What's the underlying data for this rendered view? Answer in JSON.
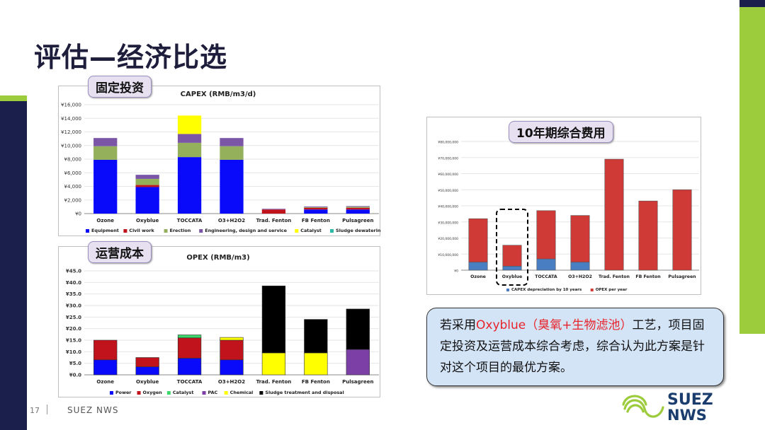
{
  "slide": {
    "title": "评估—经济比选",
    "page_number": "17",
    "footer_company": "SUEZ NWS",
    "logo_text_1": "SUEZ",
    "logo_text_2": "NWS"
  },
  "capex_panel": {
    "tag": "固定投资"
  },
  "opex_panel": {
    "tag": "运营成本"
  },
  "total_panel": {
    "tag": "10年期综合费用"
  },
  "conclusion": {
    "part1": "若采用",
    "highlight": "Oxyblue（臭氧+生物滤池）",
    "part2": "工艺，项目固定投资及运营成本综合考虑，综合认为此方案是针对这个项目的最优方案。"
  },
  "colors": {
    "equipment": "#0a0afa",
    "civil_work": "#c0131b",
    "erection": "#94b05a",
    "engineering": "#7b55a6",
    "catalyst_capex": "#ffff00",
    "sludge_dewatering": "#2eb8a8",
    "power": "#0a0afa",
    "oxygen": "#c0131b",
    "catalyst_opex": "#3dd66a",
    "pac": "#7b3fa6",
    "chemical": "#ffff00",
    "sludge_treatment": "#000000",
    "capex_dep": "#4a7ec2",
    "opex_year": "#d03a36"
  },
  "chart_data": [
    {
      "type": "bar",
      "stacked": true,
      "title": "CAPEX (RMB/m3/d)",
      "categories": [
        "Ozone",
        "Oxyblue",
        "TOCCATA",
        "O3+H2O2",
        "Trad. Fenton",
        "FB Fenton",
        "Pulsagreen"
      ],
      "ylim": [
        0,
        16000
      ],
      "yticks": [
        "¥0",
        "¥2,000",
        "¥4,000",
        "¥6,000",
        "¥8,000",
        "¥10,000",
        "¥12,000",
        "¥14,000",
        "¥16,000"
      ],
      "legend_position": "bottom",
      "series": [
        {
          "name": "Equipment",
          "color_key": "equipment",
          "values": [
            7900,
            3900,
            8300,
            7900,
            0,
            600,
            600
          ]
        },
        {
          "name": "Civil work",
          "color_key": "civil_work",
          "values": [
            0,
            300,
            0,
            0,
            600,
            250,
            250
          ]
        },
        {
          "name": "Erection",
          "color_key": "erection",
          "values": [
            2000,
            900,
            2100,
            2000,
            0,
            100,
            150
          ]
        },
        {
          "name": "Engineering, design and service",
          "color_key": "engineering",
          "values": [
            1200,
            600,
            1300,
            1200,
            100,
            100,
            100
          ]
        },
        {
          "name": "Catalyst",
          "color_key": "catalyst_capex",
          "values": [
            0,
            0,
            2700,
            0,
            0,
            0,
            0
          ]
        },
        {
          "name": "Sludge dewatering",
          "color_key": "sludge_dewatering",
          "values": [
            0,
            0,
            0,
            0,
            0,
            0,
            0
          ]
        }
      ]
    },
    {
      "type": "bar",
      "stacked": true,
      "title": "OPEX (RMB/m3)",
      "categories": [
        "Ozone",
        "Oxyblue",
        "TOCCATA",
        "O3+H2O2",
        "Trad. Fenton",
        "FB Fenton",
        "Pulsagreen"
      ],
      "ylim": [
        0,
        45
      ],
      "yticks": [
        "¥0.0",
        "¥5.0",
        "¥10.0",
        "¥15.0",
        "¥20.0",
        "¥25.0",
        "¥30.0",
        "¥35.0",
        "¥40.0",
        "¥45.0"
      ],
      "legend_position": "bottom",
      "series": [
        {
          "name": "Power",
          "color_key": "power",
          "values": [
            6.5,
            3.5,
            7.2,
            6.5,
            0,
            0,
            0
          ]
        },
        {
          "name": "Oxygen",
          "color_key": "oxygen",
          "values": [
            8.5,
            4.0,
            8.8,
            8.5,
            0,
            0,
            0
          ]
        },
        {
          "name": "Catalyst",
          "color_key": "catalyst_opex",
          "values": [
            0,
            0,
            1.3,
            0,
            0,
            0,
            0
          ]
        },
        {
          "name": "PAC",
          "color_key": "pac",
          "values": [
            0,
            0,
            0,
            0,
            0,
            0,
            11.0
          ]
        },
        {
          "name": "Chemical",
          "color_key": "chemical",
          "values": [
            0,
            0,
            0,
            1.2,
            9.5,
            9.5,
            0
          ]
        },
        {
          "name": "Sludge treatment and disposal",
          "color_key": "sludge_treatment",
          "values": [
            0,
            0,
            0,
            0,
            29.0,
            14.5,
            17.5
          ]
        }
      ]
    },
    {
      "type": "bar",
      "stacked": true,
      "title": "",
      "categories": [
        "Ozone",
        "Oxyblue",
        "TOCCATA",
        "O3+H2O2",
        "Trad. Fenton",
        "FB Fenton",
        "Pulsagreen"
      ],
      "ylim": [
        0,
        80000000
      ],
      "yticks": [
        "¥0",
        "¥10,000,000",
        "¥20,000,000",
        "¥30,000,000",
        "¥40,000,000",
        "¥50,000,000",
        "¥60,000,000",
        "¥70,000,000",
        "¥80,000,000"
      ],
      "legend_position": "bottom",
      "highlight_category": "Oxyblue",
      "series": [
        {
          "name": "CAPEX depreciation by 10 years",
          "color_key": "capex_dep",
          "values": [
            5000000,
            2500000,
            7000000,
            5000000,
            0,
            0,
            0
          ]
        },
        {
          "name": "OPEX per year",
          "color_key": "opex_year",
          "values": [
            27000000,
            13000000,
            30000000,
            29000000,
            69000000,
            43000000,
            50000000
          ]
        }
      ]
    }
  ]
}
